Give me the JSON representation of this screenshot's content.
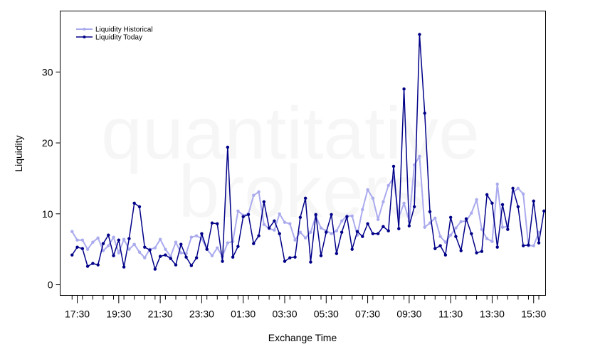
{
  "watermark": {
    "line1": "quantitative",
    "line2": "brokers"
  },
  "chart_data": {
    "type": "line",
    "xlabel": "Exchange Time",
    "ylabel": "Liquidity",
    "ylim": [
      -1.5,
      38.6
    ],
    "yticks": [
      0,
      10,
      20,
      30
    ],
    "xlim": [
      -2.3,
      91.3
    ],
    "x_tick_labels": [
      "17:30",
      "19:30",
      "21:30",
      "23:30",
      "01:30",
      "03:30",
      "05:30",
      "07:30",
      "09:30",
      "11:30",
      "13:30",
      "15:30"
    ],
    "x_label_positions": [
      1,
      9,
      17,
      25,
      33,
      41,
      49,
      57,
      65,
      73,
      81,
      89
    ],
    "x_minor_positions": [
      0,
      2,
      4,
      6,
      8,
      10,
      12,
      14,
      16,
      18,
      20,
      22,
      24,
      26,
      28,
      30,
      32,
      34,
      36,
      38,
      40,
      42,
      44,
      46,
      48,
      50,
      52,
      54,
      56,
      58,
      60,
      62,
      64,
      66,
      68,
      70,
      72,
      74,
      76,
      78,
      80,
      82,
      84,
      86,
      88,
      90
    ],
    "grid": false,
    "legend_position": "top-left",
    "series": [
      {
        "name": "Liquidity Historical",
        "color": "#aaaaee",
        "values": [
          7.5,
          6.3,
          6.3,
          5.0,
          6.0,
          6.6,
          4.8,
          5.5,
          6.7,
          4.5,
          6.4,
          5.0,
          5.7,
          4.6,
          3.8,
          5.0,
          5.2,
          6.4,
          5.0,
          4.0,
          6.0,
          4.5,
          4.4,
          6.7,
          6.9,
          6.5,
          5.0,
          4.1,
          5.2,
          4.0,
          5.9,
          6.1,
          10.4,
          9.8,
          10.0,
          12.6,
          13.1,
          8.5,
          7.9,
          7.7,
          10.0,
          8.8,
          8.6,
          6.3,
          7.4,
          6.6,
          7.4,
          9.7,
          8.0,
          7.6,
          7.2,
          7.6,
          9.0,
          9.7,
          9.7,
          7.0,
          10.6,
          13.4,
          12.2,
          9.2,
          11.7,
          14.0,
          15.1,
          9.5,
          11.5,
          9.0,
          16.9,
          18.1,
          8.1,
          8.7,
          9.4,
          6.8,
          6.0,
          7.0,
          8.0,
          8.9,
          9.0,
          10.1,
          12.0,
          7.8,
          6.5,
          6.1,
          14.2,
          8.1,
          8.2,
          13.0,
          13.6,
          12.8,
          5.5,
          5.5,
          7.4
        ]
      },
      {
        "name": "Liquidity Today",
        "color": "#000088",
        "values": [
          4.2,
          5.3,
          5.1,
          2.6,
          3.0,
          2.8,
          5.8,
          7.0,
          4.1,
          6.3,
          2.5,
          6.5,
          11.5,
          11.0,
          5.3,
          4.9,
          2.2,
          4.0,
          4.2,
          3.7,
          2.8,
          5.7,
          3.9,
          2.7,
          3.8,
          7.2,
          5.0,
          8.7,
          8.6,
          3.3,
          19.4,
          3.9,
          5.4,
          9.6,
          9.9,
          5.8,
          6.9,
          11.7,
          8.0,
          9.0,
          7.2,
          3.3,
          3.8,
          3.9,
          9.5,
          12.2,
          3.2,
          9.9,
          4.1,
          7.4,
          9.9,
          4.4,
          7.4,
          9.6,
          5.0,
          7.5,
          6.8,
          8.6,
          7.2,
          7.2,
          8.2,
          7.6,
          16.7,
          7.9,
          27.6,
          8.3,
          11.0,
          35.3,
          24.2,
          10.3,
          5.1,
          5.5,
          4.2,
          9.5,
          6.8,
          4.8,
          9.3,
          7.2,
          4.5,
          4.7,
          12.7,
          11.5,
          5.3,
          11.3,
          7.8,
          13.6,
          11.0,
          5.5,
          5.6,
          11.8,
          5.9,
          10.4
        ]
      }
    ]
  }
}
